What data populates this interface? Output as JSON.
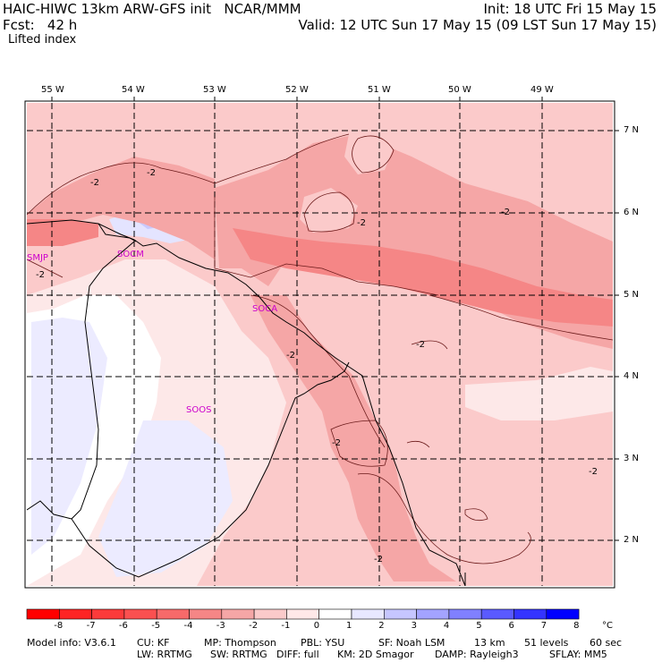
{
  "header": {
    "title": "HAIC-HIWC 13km ARW-GFS init   NCAR/MMM",
    "forecast": "Fcst:   42 h",
    "init": "Init: 18 UTC Fri 15 May 15",
    "valid": "Valid: 12 UTC Sun 17 May 15 (09 LST Sun 17 May 15)",
    "field": "Lifted index"
  },
  "axes": {
    "lon_labels": [
      "55 W",
      "54 W",
      "53 W",
      "52 W",
      "51 W",
      "50 W",
      "49 W"
    ],
    "lat_labels": [
      "7 N",
      "6 N",
      "5 N",
      "4 N",
      "3 N",
      "2 N"
    ]
  },
  "stations": [
    "SMJP",
    "SOCM",
    "SOCA",
    "SOOS"
  ],
  "contour_labels": [
    "-2",
    "-2",
    "-2",
    "-2",
    "-2",
    "-2",
    "-2",
    "-2",
    "-2",
    "-2",
    "-2"
  ],
  "colorbar": {
    "ticks": [
      "-8",
      "-7",
      "-6",
      "-5",
      "-4",
      "-3",
      "-2",
      "-1",
      "0",
      "1",
      "2",
      "3",
      "4",
      "5",
      "6",
      "7",
      "8"
    ],
    "unit": "°C",
    "colors": [
      "#ff0000",
      "#fe2424",
      "#fc3a3a",
      "#fa5050",
      "#f76a6a",
      "#f58686",
      "#f5a6a6",
      "#fbcaca",
      "#ffe8e8",
      "#ffffff",
      "#e8e8ff",
      "#c6c6ff",
      "#a3a3ff",
      "#8080ff",
      "#5a5aff",
      "#3434ff",
      "#0000ff"
    ]
  },
  "footer": {
    "model": "Model info: V3.6.1",
    "cu": "CU: KF",
    "mp": "MP: Thompson",
    "pbl": "PBL: YSU",
    "sf": "SF: Noah LSM",
    "res": "13 km",
    "levels": "51 levels",
    "dt": "60 sec",
    "lw": "LW: RRTMG",
    "sw": "SW: RRTMG",
    "diff": "DIFF: full",
    "km": "KM: 2D Smagor",
    "damp": "DAMP: Rayleigh3",
    "sflay": "SFLAY: MM5"
  }
}
